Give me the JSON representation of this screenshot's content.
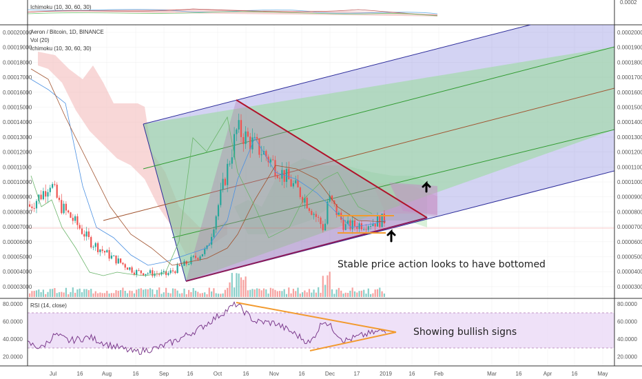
{
  "top_panel": {
    "legend": "Ichimoku (10, 30, 60, 30)",
    "right_tick": "0.0002"
  },
  "main_panel": {
    "legend": [
      "Aeron / Bitcoin, 1D, BINANCE",
      "Vol (20)",
      "Ichimoku (10, 30, 60, 30)"
    ],
    "left_ticks": [
      "0.00020000",
      "0.00019000",
      "0.00018000",
      "0.00017000",
      "0.00016000",
      "0.00015000",
      "0.00014000",
      "0.00013000",
      "0.00012000",
      "0.00011000",
      "0.00010000",
      "0.00009000",
      "0.00008000",
      "0.00007000",
      "0.00006000",
      "0.00005000",
      "0.00004000",
      "0.00003000"
    ],
    "right_ticks": [
      "0.00020000",
      "0.00019000",
      "0.00018000",
      "0.00017000",
      "0.00016000",
      "0.00015000",
      "0.00014000",
      "0.00013000",
      "0.00012000",
      "0.00011000",
      "0.00010000",
      "0.00009000",
      "0.00008000",
      "0.00007000",
      "0.00006000",
      "0.00005000",
      "0.00004000",
      "0.00003000"
    ],
    "annotation": "Stable price action looks to have bottomed"
  },
  "rsi_panel": {
    "legend": "RSI (14, close)",
    "left_ticks": [
      "80.0000",
      "60.0000",
      "40.0000",
      "20.0000"
    ],
    "right_ticks": [
      "80.0000",
      "60.0000",
      "40.0000",
      "20.0000"
    ],
    "annotation": "Showing bullish signs"
  },
  "x_axis": {
    "labels": [
      "Jul",
      "16",
      "Aug",
      "16",
      "Sep",
      "16",
      "Oct",
      "16",
      "Nov",
      "16",
      "Dec",
      "17",
      "2019",
      "16",
      "Feb",
      "Mar",
      "16",
      "Apr",
      "16",
      "May"
    ]
  },
  "colors": {
    "up": "#26a69a",
    "down": "#ef5350",
    "pitch_outer": "#7a7ad8",
    "pitch_inner": "#8fd68f",
    "triangle": "#b0122a",
    "rsi_line": "#7b3a8c",
    "rsi_band": "#e8d4f5",
    "orange": "#f29a2e"
  },
  "chart_data": [
    {
      "type": "candlestick",
      "title": "Aeron / Bitcoin, 1D, BINANCE",
      "x": [
        "2018-06-20",
        "2018-07-01",
        "2018-07-10",
        "2018-07-20",
        "2018-08-01",
        "2018-08-10",
        "2018-08-20",
        "2018-09-01",
        "2018-09-10",
        "2018-09-20",
        "2018-10-01",
        "2018-10-10",
        "2018-10-20",
        "2018-11-01",
        "2018-11-10",
        "2018-11-20",
        "2018-12-01",
        "2018-12-10",
        "2018-12-20",
        "2019-01-01"
      ],
      "close": [
        8.5e-05,
        9.2e-05,
        0.0001,
        8.5e-05,
        7.2e-05,
        6e-05,
        5e-05,
        4e-05,
        3.8e-05,
        4.5e-05,
        5.5e-05,
        0.000135,
        0.00012,
        0.000105,
        9e-05,
        6.8e-05,
        9e-05,
        7e-05,
        7.3e-05,
        7.5e-05
      ],
      "ylim": [
        3e-05,
        0.0002
      ],
      "overlays": [
        "Vol (20)",
        "Ichimoku (10, 30, 60, 30)",
        "Pitchfork channel",
        "Descending triangle"
      ]
    },
    {
      "type": "line",
      "title": "RSI (14, close)",
      "x": [
        "2018-06-20",
        "2018-07-01",
        "2018-07-10",
        "2018-07-20",
        "2018-08-01",
        "2018-08-10",
        "2018-08-20",
        "2018-09-01",
        "2018-09-10",
        "2018-09-20",
        "2018-10-01",
        "2018-10-10",
        "2018-10-20",
        "2018-11-01",
        "2018-11-10",
        "2018-11-20",
        "2018-12-01",
        "2018-12-10",
        "2018-12-20",
        "2019-01-01"
      ],
      "y": [
        35,
        30,
        45,
        38,
        42,
        33,
        25,
        30,
        38,
        52,
        68,
        80,
        60,
        58,
        45,
        35,
        62,
        38,
        45,
        50
      ],
      "ylim": [
        10,
        85
      ],
      "bands": [
        30,
        70
      ]
    }
  ]
}
